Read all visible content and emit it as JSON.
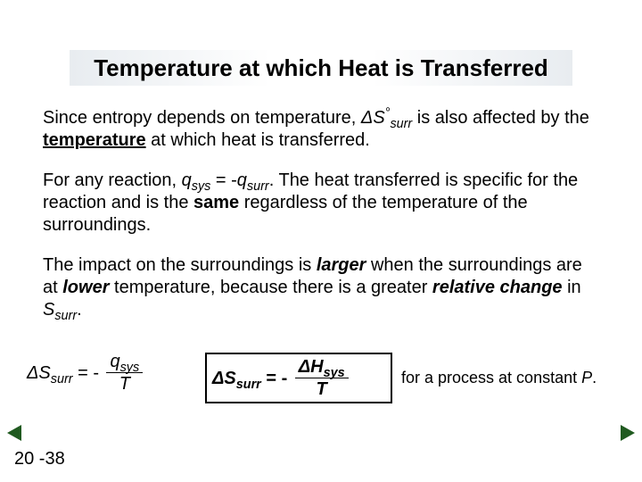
{
  "title": "Temperature at which Heat is Transferred",
  "p1": {
    "t1": "Since entropy depends on temperature, ",
    "dS": "ΔS",
    "deg": "°",
    "surr": "surr",
    "t2": " is also affected by the ",
    "temp": "temperature",
    "t3": " at which heat is transferred."
  },
  "p2": {
    "t1": "For any reaction, ",
    "q1": "q",
    "sys": "sys",
    "eq": " = -",
    "q2": "q",
    "surr": "surr",
    "t2": ". The heat transferred is specific for the reaction and is the ",
    "same": "same",
    "t3": " regardless of the temperature of the surroundings."
  },
  "p3": {
    "t1": "The impact on the surroundings is ",
    "larger": "larger",
    "t2": " when the surroundings are at ",
    "lower": "lower",
    "t3": " temperature, because there is a greater ",
    "rel": "relative change",
    "t4": " in ",
    "S": "S",
    "surr": "surr",
    "t5": "."
  },
  "eq1": {
    "lhs_dS": "ΔS",
    "surr": "surr",
    "eq": " = - ",
    "num_q": "q",
    "num_sys": "sys",
    "den": "T"
  },
  "eq2": {
    "lhs_dS": "ΔS",
    "lhs_surr": "surr",
    "eq": " = - ",
    "num_dH": "ΔH",
    "num_sys": "sys",
    "den": "T"
  },
  "note": {
    "t1": " for a process at constant ",
    "P": "P",
    "t2": "."
  },
  "pagenum": "20 -38",
  "colors": {
    "arrow": "#205a20",
    "border": "#000000",
    "bg": "#ffffff"
  }
}
